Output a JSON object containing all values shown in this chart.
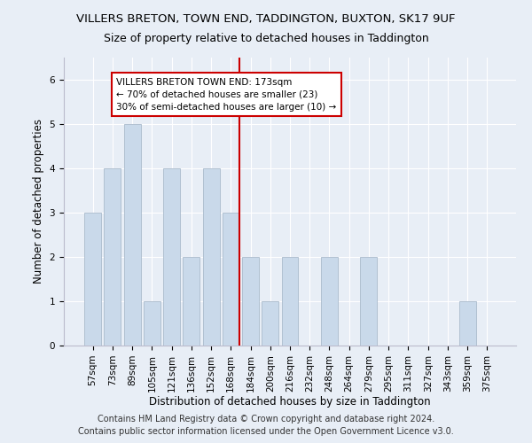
{
  "title": "VILLERS BRETON, TOWN END, TADDINGTON, BUXTON, SK17 9UF",
  "subtitle": "Size of property relative to detached houses in Taddington",
  "xlabel": "Distribution of detached houses by size in Taddington",
  "ylabel": "Number of detached properties",
  "categories": [
    "57sqm",
    "73sqm",
    "89sqm",
    "105sqm",
    "121sqm",
    "136sqm",
    "152sqm",
    "168sqm",
    "184sqm",
    "200sqm",
    "216sqm",
    "232sqm",
    "248sqm",
    "264sqm",
    "279sqm",
    "295sqm",
    "311sqm",
    "327sqm",
    "343sqm",
    "359sqm",
    "375sqm"
  ],
  "values": [
    3,
    4,
    5,
    1,
    4,
    2,
    4,
    3,
    2,
    1,
    2,
    0,
    2,
    0,
    2,
    0,
    0,
    0,
    0,
    1,
    0
  ],
  "bar_color": "#c9d9ea",
  "bar_edge_color": "#aabbcc",
  "vline_x_index": 7,
  "vline_color": "#cc0000",
  "annotation_text": "VILLERS BRETON TOWN END: 173sqm\n← 70% of detached houses are smaller (23)\n30% of semi-detached houses are larger (10) →",
  "annotation_box_color": "white",
  "annotation_box_edge": "#cc0000",
  "ylim": [
    0,
    6.5
  ],
  "yticks": [
    0,
    1,
    2,
    3,
    4,
    5,
    6
  ],
  "footer": "Contains HM Land Registry data © Crown copyright and database right 2024.\nContains public sector information licensed under the Open Government Licence v3.0.",
  "bg_color": "#e8eef6",
  "plot_bg_color": "#e8eef6",
  "title_fontsize": 9.5,
  "subtitle_fontsize": 9,
  "axis_label_fontsize": 8.5,
  "tick_fontsize": 7.5,
  "footer_fontsize": 7,
  "annotation_fontsize": 7.5
}
